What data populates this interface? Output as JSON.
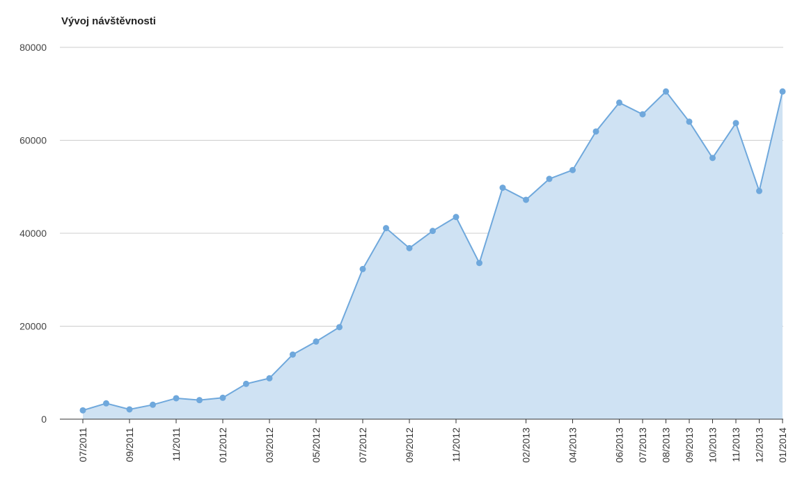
{
  "chart_data": {
    "type": "area",
    "title": "Vývoj návštěvnosti",
    "xlabel": "",
    "ylabel": "",
    "ylim": [
      0,
      80000
    ],
    "yticks": [
      "80000",
      "60000",
      "40000",
      "20000",
      "0"
    ],
    "grid": true,
    "legend": "none",
    "colors": {
      "line": "#6fa8dc",
      "fill": "#cfe2f3",
      "grid": "#cccccc",
      "axis": "#333333"
    },
    "x": [
      "07/2011",
      "08/2011",
      "09/2011",
      "10/2011",
      "11/2011",
      "12/2011",
      "01/2012",
      "02/2012",
      "03/2012",
      "04/2012",
      "05/2012",
      "06/2012",
      "07/2012",
      "08/2012",
      "09/2012",
      "10/2012",
      "11/2012",
      "12/2012",
      "01/2013",
      "02/2013",
      "03/2013",
      "04/2013",
      "05/2013",
      "06/2013",
      "07/2013",
      "08/2013",
      "09/2013",
      "10/2013",
      "11/2013",
      "12/2013",
      "01/2014"
    ],
    "x_tick_labels": [
      "07/2011",
      "09/2011",
      "11/2011",
      "01/2012",
      "03/2012",
      "05/2012",
      "07/2012",
      "09/2012",
      "11/2012",
      "02/2013",
      "04/2013",
      "06/2013",
      "07/2013",
      "08/2013",
      "09/2013",
      "10/2013",
      "11/2013",
      "12/2013",
      "01/2014"
    ],
    "values": [
      1900,
      3400,
      2100,
      3100,
      4500,
      4100,
      4600,
      7600,
      8800,
      13900,
      16700,
      19800,
      32300,
      41100,
      36800,
      40500,
      43500,
      33600,
      49800,
      47200,
      51700,
      53600,
      61900,
      68100,
      65600,
      70500,
      64000,
      56200,
      63700,
      49100,
      70500
    ]
  }
}
